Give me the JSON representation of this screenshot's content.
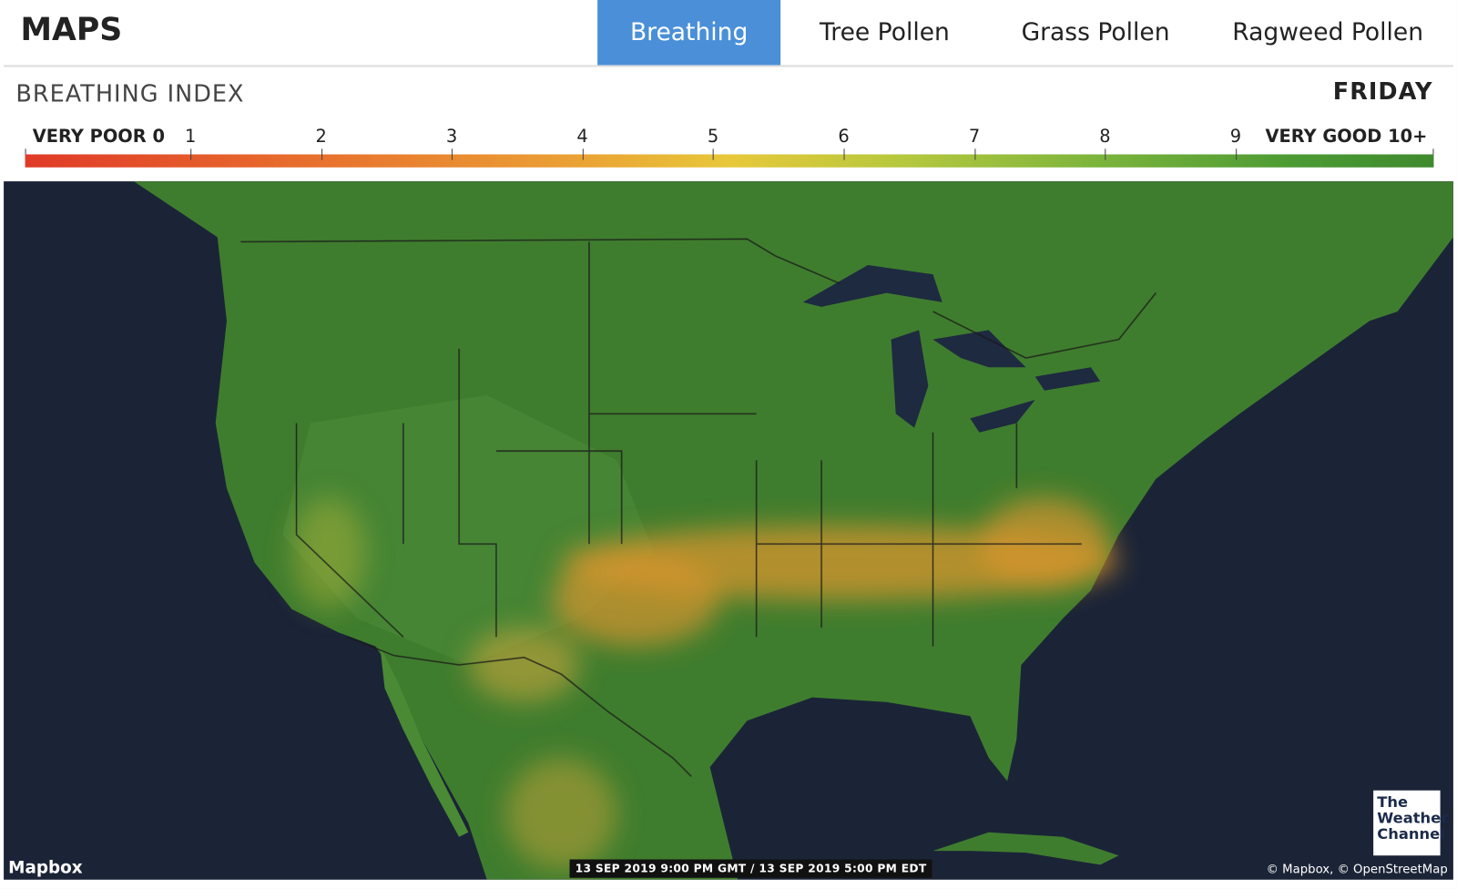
{
  "header": {
    "title": "MAPS",
    "tabs": [
      "Breathing",
      "Tree Pollen",
      "Grass Pollen",
      "Ragweed Pollen"
    ],
    "selected_tab": 0
  },
  "legend": {
    "title": "BREATHING INDEX",
    "day": "FRIDAY",
    "low_label": "VERY POOR 0",
    "high_label": "VERY GOOD 10+",
    "scale_labels": [
      "1",
      "2",
      "3",
      "4",
      "5",
      "6",
      "7",
      "8",
      "9"
    ]
  },
  "map": {
    "attribution_left": "Mapbox",
    "timestamp": "13 SEP 2019 9:00 PM GMT / 13 SEP 2019 5:00 PM EDT",
    "attribution_right": "© Mapbox, © OpenStreetMap",
    "logo": [
      "The",
      "Weather",
      "Channel"
    ]
  }
}
